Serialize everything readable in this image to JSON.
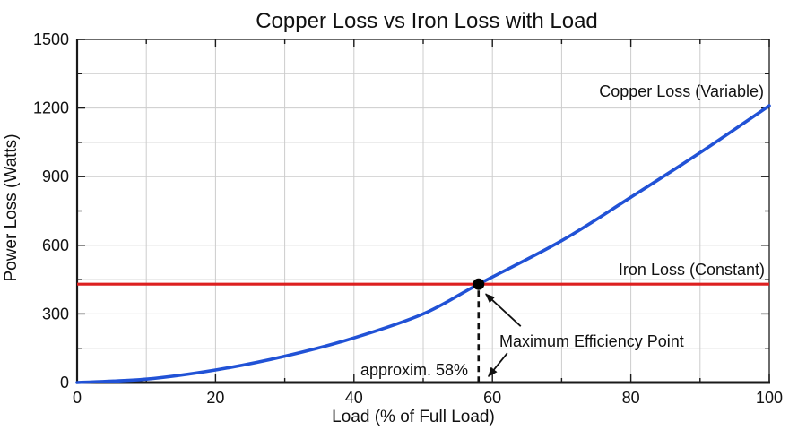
{
  "page": {
    "background": "#ffffff",
    "text_color": "#111111"
  },
  "chart_data": {
    "type": "line",
    "title": "Copper Loss vs Iron Loss with Load",
    "xlabel": "Load (% of Full Load)",
    "ylabel": "Power Loss (Watts)",
    "xlim": [
      0,
      100
    ],
    "ylim": [
      0,
      1500
    ],
    "xticks": [
      0,
      20,
      40,
      60,
      80,
      100
    ],
    "yticks": [
      0,
      300,
      600,
      900,
      1200,
      1500
    ],
    "x_minor_step": 10,
    "y_minor_step": 150,
    "grid": true,
    "grid_color": "#cccccc",
    "axis_color": "#1a1a1a",
    "box_color": "#3a3a3a",
    "legend_position": "labels-near-lines",
    "series": [
      {
        "name": "copper-loss",
        "label": "Copper Loss (Variable)",
        "type": "curve",
        "color": "#2152d6",
        "stroke_width": 3.6,
        "x": [
          0,
          10,
          20,
          30,
          40,
          50,
          58,
          70,
          80,
          90,
          100
        ],
        "y": [
          0,
          15,
          55,
          115,
          195,
          300,
          430,
          620,
          810,
          1005,
          1210
        ]
      },
      {
        "name": "iron-loss",
        "label": "Iron Loss (Constant)",
        "type": "hline",
        "color": "#dd2020",
        "stroke_width": 3.2,
        "value": 430
      }
    ],
    "annotations": {
      "max_point": {
        "x": 58,
        "y": 430,
        "label": "Maximum Efficiency Point",
        "marker": "filled-circle",
        "marker_color": "#000000",
        "dashed_drop_line": true
      },
      "approx_label": "approxim. 58%"
    }
  }
}
